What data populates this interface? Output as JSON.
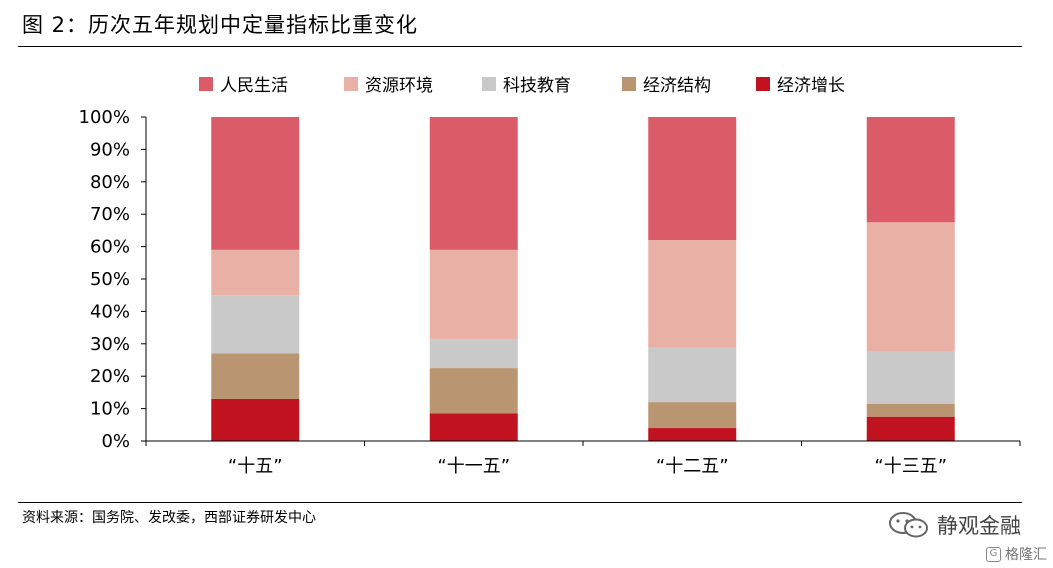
{
  "figure": {
    "title": "图 2：历次五年规划中定量指标比重变化",
    "source": "资料来源：国务院、发改委，西部证券研发中心",
    "watermark": "静观金融",
    "badge": "格隆汇",
    "badge_icon": "G"
  },
  "chart_data": {
    "type": "bar",
    "stacked": true,
    "categories": [
      "“十五”",
      "“十一五”",
      "“十二五”",
      "“十三五”"
    ],
    "series": [
      {
        "name": "经济增长",
        "color": "#c0131f",
        "values": [
          13,
          8.5,
          4,
          7.5
        ]
      },
      {
        "name": "经济结构",
        "color": "#b99572",
        "values": [
          14,
          14,
          8,
          4
        ]
      },
      {
        "name": "科技教育",
        "color": "#c9c9c9",
        "values": [
          18,
          9,
          17,
          16
        ]
      },
      {
        "name": "资源环境",
        "color": "#e9b1a6",
        "values": [
          14,
          27.5,
          33,
          40
        ]
      },
      {
        "name": "人民生活",
        "color": "#dc5b68",
        "values": [
          41,
          41,
          38,
          32.5
        ]
      }
    ],
    "legend_order": [
      "人民生活",
      "资源环境",
      "科技教育",
      "经济结构",
      "经济增长"
    ],
    "legend_position": "top",
    "ylim": [
      0,
      100
    ],
    "yticks": [
      0,
      10,
      20,
      30,
      40,
      50,
      60,
      70,
      80,
      90,
      100
    ],
    "ytick_suffix": "%",
    "grid": false,
    "xlabel": "",
    "ylabel": ""
  }
}
